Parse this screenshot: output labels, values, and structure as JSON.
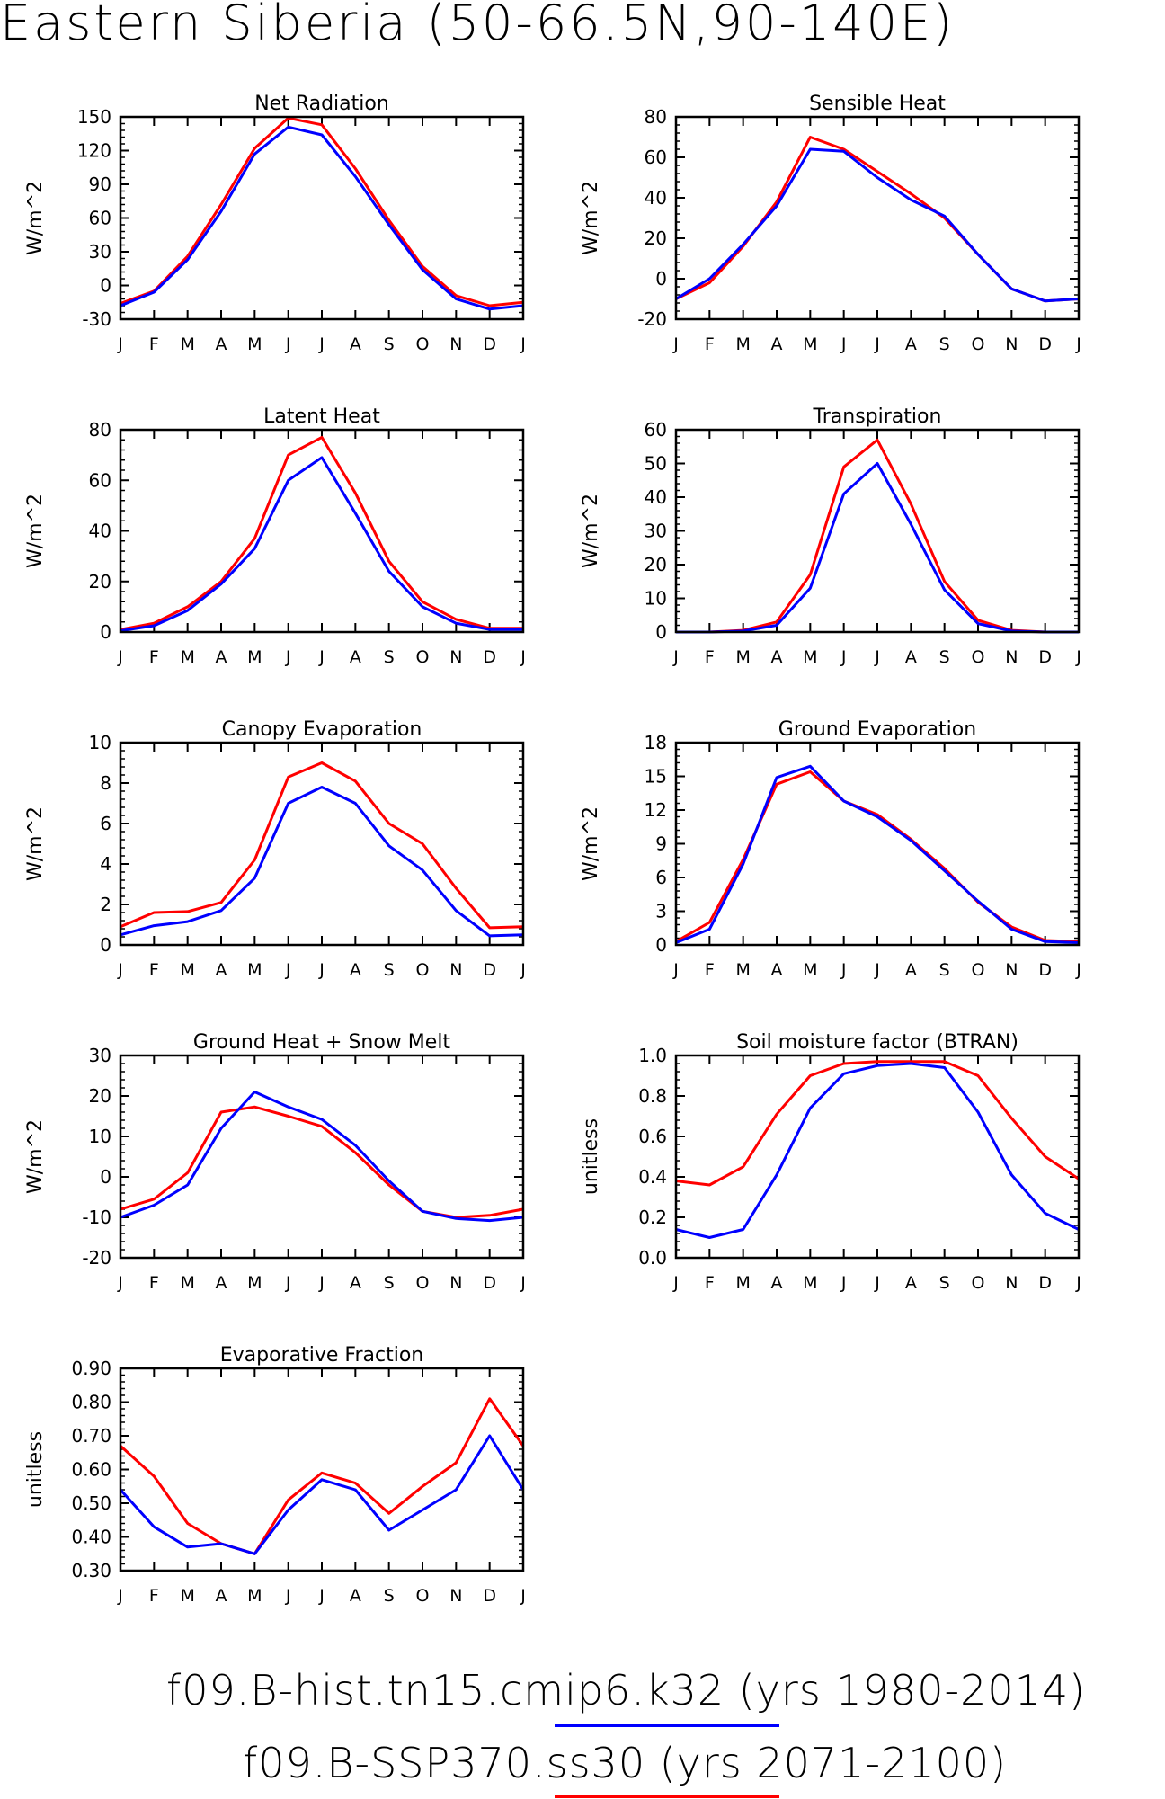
{
  "page": {
    "title": "Eastern Siberia (50-66.5N,90-140E)"
  },
  "colors": {
    "case1": "#0000ff",
    "case2": "#ff0000"
  },
  "legend": [
    {
      "label": "f09.B-hist.tn15.cmip6.k32 (yrs 1980-2014)",
      "color": "#0000ff"
    },
    {
      "label": "f09.B-SSP370.ss30 (yrs 2071-2100)",
      "color": "#ff0000"
    }
  ],
  "chart_data": [
    {
      "type": "line",
      "title": "Net Radiation",
      "ylabel": "W/m^2",
      "categories": [
        "J",
        "F",
        "M",
        "A",
        "M",
        "J",
        "J",
        "A",
        "S",
        "O",
        "N",
        "D",
        "J"
      ],
      "ylim": [
        -30,
        150
      ],
      "yticks": [
        -30,
        0,
        30,
        60,
        90,
        120,
        150
      ],
      "ytick_labels": [
        "-30",
        "0",
        "30",
        "60",
        "90",
        "120",
        "150"
      ],
      "series": [
        {
          "color": "#ff0000",
          "values": [
            -16,
            -5,
            26,
            72,
            122,
            149,
            143,
            104,
            58,
            17,
            -9,
            -18,
            -15
          ]
        },
        {
          "color": "#0000ff",
          "values": [
            -18,
            -6,
            23,
            66,
            117,
            141,
            134,
            97,
            54,
            14,
            -12,
            -21,
            -18
          ]
        }
      ]
    },
    {
      "type": "line",
      "title": "Sensible Heat",
      "ylabel": "W/m^2",
      "categories": [
        "J",
        "F",
        "M",
        "A",
        "M",
        "J",
        "J",
        "A",
        "S",
        "O",
        "N",
        "D",
        "J"
      ],
      "ylim": [
        -20,
        80
      ],
      "yticks": [
        -20,
        0,
        20,
        40,
        60,
        80
      ],
      "ytick_labels": [
        "-20",
        "0",
        "20",
        "40",
        "60",
        "80"
      ],
      "series": [
        {
          "color": "#ff0000",
          "values": [
            -10,
            -2,
            16,
            38,
            70,
            64,
            53,
            42,
            30,
            12,
            -5,
            -11,
            -10
          ]
        },
        {
          "color": "#0000ff",
          "values": [
            -10,
            0,
            17,
            36,
            64,
            63,
            50,
            39,
            31,
            12,
            -5,
            -11,
            -10
          ]
        }
      ]
    },
    {
      "type": "line",
      "title": "Latent Heat",
      "ylabel": "W/m^2",
      "categories": [
        "J",
        "F",
        "M",
        "A",
        "M",
        "J",
        "J",
        "A",
        "S",
        "O",
        "N",
        "D",
        "J"
      ],
      "ylim": [
        0,
        80
      ],
      "yticks": [
        0,
        20,
        40,
        60,
        80
      ],
      "ytick_labels": [
        "0",
        "20",
        "40",
        "60",
        "80"
      ],
      "series": [
        {
          "color": "#ff0000",
          "values": [
            1,
            3.5,
            10,
            20,
            37,
            70,
            77,
            55,
            28,
            12,
            5,
            1.5,
            1.5
          ]
        },
        {
          "color": "#0000ff",
          "values": [
            0.5,
            2.5,
            8.5,
            19,
            33,
            60,
            69,
            47,
            24,
            10,
            3.5,
            1,
            1
          ]
        }
      ]
    },
    {
      "type": "line",
      "title": "Transpiration",
      "ylabel": "W/m^2",
      "categories": [
        "J",
        "F",
        "M",
        "A",
        "M",
        "J",
        "J",
        "A",
        "S",
        "O",
        "N",
        "D",
        "J"
      ],
      "ylim": [
        0,
        60
      ],
      "yticks": [
        0,
        10,
        20,
        30,
        40,
        50,
        60
      ],
      "ytick_labels": [
        "0",
        "10",
        "20",
        "30",
        "40",
        "50",
        "60"
      ],
      "series": [
        {
          "color": "#ff0000",
          "values": [
            0,
            0,
            0.5,
            3,
            17,
            49,
            57,
            38,
            15,
            3.5,
            0.5,
            0,
            0
          ]
        },
        {
          "color": "#0000ff",
          "values": [
            0,
            0,
            0.3,
            2,
            13,
            41,
            50,
            32,
            12.5,
            2.5,
            0.3,
            0,
            0
          ]
        }
      ]
    },
    {
      "type": "line",
      "title": "Canopy Evaporation",
      "ylabel": "W/m^2",
      "categories": [
        "J",
        "F",
        "M",
        "A",
        "M",
        "J",
        "J",
        "A",
        "S",
        "O",
        "N",
        "D",
        "J"
      ],
      "ylim": [
        0,
        10
      ],
      "yticks": [
        0,
        2,
        4,
        6,
        8,
        10
      ],
      "ytick_labels": [
        "0",
        "2",
        "4",
        "6",
        "8",
        "10"
      ],
      "series": [
        {
          "color": "#ff0000",
          "values": [
            0.9,
            1.6,
            1.65,
            2.1,
            4.2,
            8.3,
            9.0,
            8.1,
            6.0,
            5.0,
            2.8,
            0.85,
            0.9
          ]
        },
        {
          "color": "#0000ff",
          "values": [
            0.5,
            0.95,
            1.15,
            1.7,
            3.3,
            7.0,
            7.8,
            7.0,
            4.9,
            3.7,
            1.7,
            0.45,
            0.5
          ]
        }
      ]
    },
    {
      "type": "line",
      "title": "Ground Evaporation",
      "ylabel": "W/m^2",
      "categories": [
        "J",
        "F",
        "M",
        "A",
        "M",
        "J",
        "J",
        "A",
        "S",
        "O",
        "N",
        "D",
        "J"
      ],
      "ylim": [
        0,
        18
      ],
      "yticks": [
        0,
        3,
        6,
        9,
        12,
        15,
        18
      ],
      "ytick_labels": [
        "0",
        "3",
        "6",
        "9",
        "12",
        "15",
        "18"
      ],
      "series": [
        {
          "color": "#ff0000",
          "values": [
            0.3,
            2.0,
            7.6,
            14.3,
            15.4,
            12.8,
            11.6,
            9.4,
            6.8,
            3.8,
            1.6,
            0.4,
            0.3
          ]
        },
        {
          "color": "#0000ff",
          "values": [
            0.2,
            1.4,
            7.2,
            14.9,
            15.9,
            12.8,
            11.4,
            9.3,
            6.6,
            3.9,
            1.4,
            0.3,
            0.2
          ]
        }
      ]
    },
    {
      "type": "line",
      "title": "Ground Heat + Snow Melt",
      "ylabel": "W/m^2",
      "categories": [
        "J",
        "F",
        "M",
        "A",
        "M",
        "J",
        "J",
        "A",
        "S",
        "O",
        "N",
        "D",
        "J"
      ],
      "ylim": [
        -20,
        30
      ],
      "yticks": [
        -20,
        -10,
        0,
        10,
        20,
        30
      ],
      "ytick_labels": [
        "-20",
        "-10",
        "0",
        "10",
        "20",
        "30"
      ],
      "series": [
        {
          "color": "#ff0000",
          "values": [
            -8,
            -5.5,
            1,
            16,
            17.3,
            15,
            12.5,
            6,
            -2,
            -8.5,
            -10,
            -9.5,
            -8
          ]
        },
        {
          "color": "#0000ff",
          "values": [
            -10,
            -7,
            -2,
            12,
            21,
            17.3,
            14.2,
            7.8,
            -1,
            -8.5,
            -10.3,
            -10.8,
            -10
          ]
        }
      ]
    },
    {
      "type": "line",
      "title": "Soil moisture factor (BTRAN)",
      "ylabel": "unitless",
      "categories": [
        "J",
        "F",
        "M",
        "A",
        "M",
        "J",
        "J",
        "A",
        "S",
        "O",
        "N",
        "D",
        "J"
      ],
      "ylim": [
        0,
        1
      ],
      "yticks": [
        0,
        0.2,
        0.4,
        0.6,
        0.8,
        1.0
      ],
      "ytick_labels": [
        "0.0",
        "0.2",
        "0.4",
        "0.6",
        "0.8",
        "1.0"
      ],
      "series": [
        {
          "color": "#ff0000",
          "values": [
            0.38,
            0.36,
            0.45,
            0.71,
            0.9,
            0.96,
            0.97,
            0.97,
            0.97,
            0.9,
            0.69,
            0.5,
            0.39
          ]
        },
        {
          "color": "#0000ff",
          "values": [
            0.14,
            0.1,
            0.14,
            0.41,
            0.74,
            0.91,
            0.95,
            0.96,
            0.94,
            0.72,
            0.41,
            0.22,
            0.14
          ]
        }
      ]
    },
    {
      "type": "line",
      "title": "Evaporative Fraction",
      "ylabel": "unitless",
      "categories": [
        "J",
        "F",
        "M",
        "A",
        "M",
        "J",
        "J",
        "A",
        "S",
        "O",
        "N",
        "D",
        "J"
      ],
      "ylim": [
        0.3,
        0.9
      ],
      "yticks": [
        0.3,
        0.4,
        0.5,
        0.6,
        0.7,
        0.8,
        0.9
      ],
      "ytick_labels": [
        "0.30",
        "0.40",
        "0.50",
        "0.60",
        "0.70",
        "0.80",
        "0.90"
      ],
      "series": [
        {
          "color": "#ff0000",
          "values": [
            0.67,
            0.58,
            0.44,
            0.38,
            0.35,
            0.51,
            0.59,
            0.56,
            0.47,
            0.55,
            0.62,
            0.81,
            0.67
          ]
        },
        {
          "color": "#0000ff",
          "values": [
            0.54,
            0.43,
            0.37,
            0.38,
            0.35,
            0.48,
            0.57,
            0.54,
            0.42,
            0.48,
            0.54,
            0.7,
            0.54
          ]
        }
      ]
    }
  ]
}
